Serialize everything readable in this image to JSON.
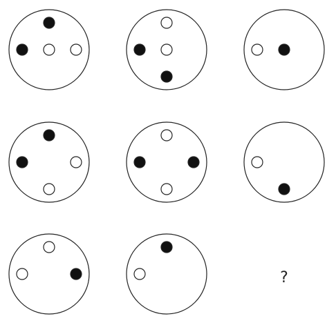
{
  "puzzle": {
    "question_mark": "?",
    "colors": {
      "stroke": "#222222",
      "filled": "#111111",
      "hollow": "#ffffff"
    },
    "cells": [
      {
        "row": 1,
        "col": 1,
        "dots": [
          {
            "pos": "top",
            "fill": "black"
          },
          {
            "pos": "left",
            "fill": "black"
          },
          {
            "pos": "center",
            "fill": "white"
          },
          {
            "pos": "right",
            "fill": "white"
          }
        ]
      },
      {
        "row": 1,
        "col": 2,
        "dots": [
          {
            "pos": "top",
            "fill": "white"
          },
          {
            "pos": "left",
            "fill": "black"
          },
          {
            "pos": "center",
            "fill": "white"
          },
          {
            "pos": "bottom",
            "fill": "black"
          }
        ]
      },
      {
        "row": 1,
        "col": 3,
        "dots": [
          {
            "pos": "left",
            "fill": "white"
          },
          {
            "pos": "center",
            "fill": "black"
          }
        ]
      },
      {
        "row": 2,
        "col": 1,
        "dots": [
          {
            "pos": "top",
            "fill": "black"
          },
          {
            "pos": "left",
            "fill": "black"
          },
          {
            "pos": "right",
            "fill": "white"
          },
          {
            "pos": "bottom",
            "fill": "white"
          }
        ]
      },
      {
        "row": 2,
        "col": 2,
        "dots": [
          {
            "pos": "top",
            "fill": "white"
          },
          {
            "pos": "left",
            "fill": "black"
          },
          {
            "pos": "right",
            "fill": "black"
          },
          {
            "pos": "bottom",
            "fill": "white"
          }
        ]
      },
      {
        "row": 2,
        "col": 3,
        "dots": [
          {
            "pos": "left",
            "fill": "white"
          },
          {
            "pos": "bottom",
            "fill": "black"
          }
        ]
      },
      {
        "row": 3,
        "col": 1,
        "dots": [
          {
            "pos": "top",
            "fill": "white"
          },
          {
            "pos": "left",
            "fill": "white"
          },
          {
            "pos": "right",
            "fill": "black"
          }
        ]
      },
      {
        "row": 3,
        "col": 2,
        "dots": [
          {
            "pos": "top",
            "fill": "black"
          },
          {
            "pos": "left",
            "fill": "white"
          }
        ]
      },
      {
        "row": 3,
        "col": 3,
        "dots": [],
        "unknown": true
      }
    ]
  }
}
